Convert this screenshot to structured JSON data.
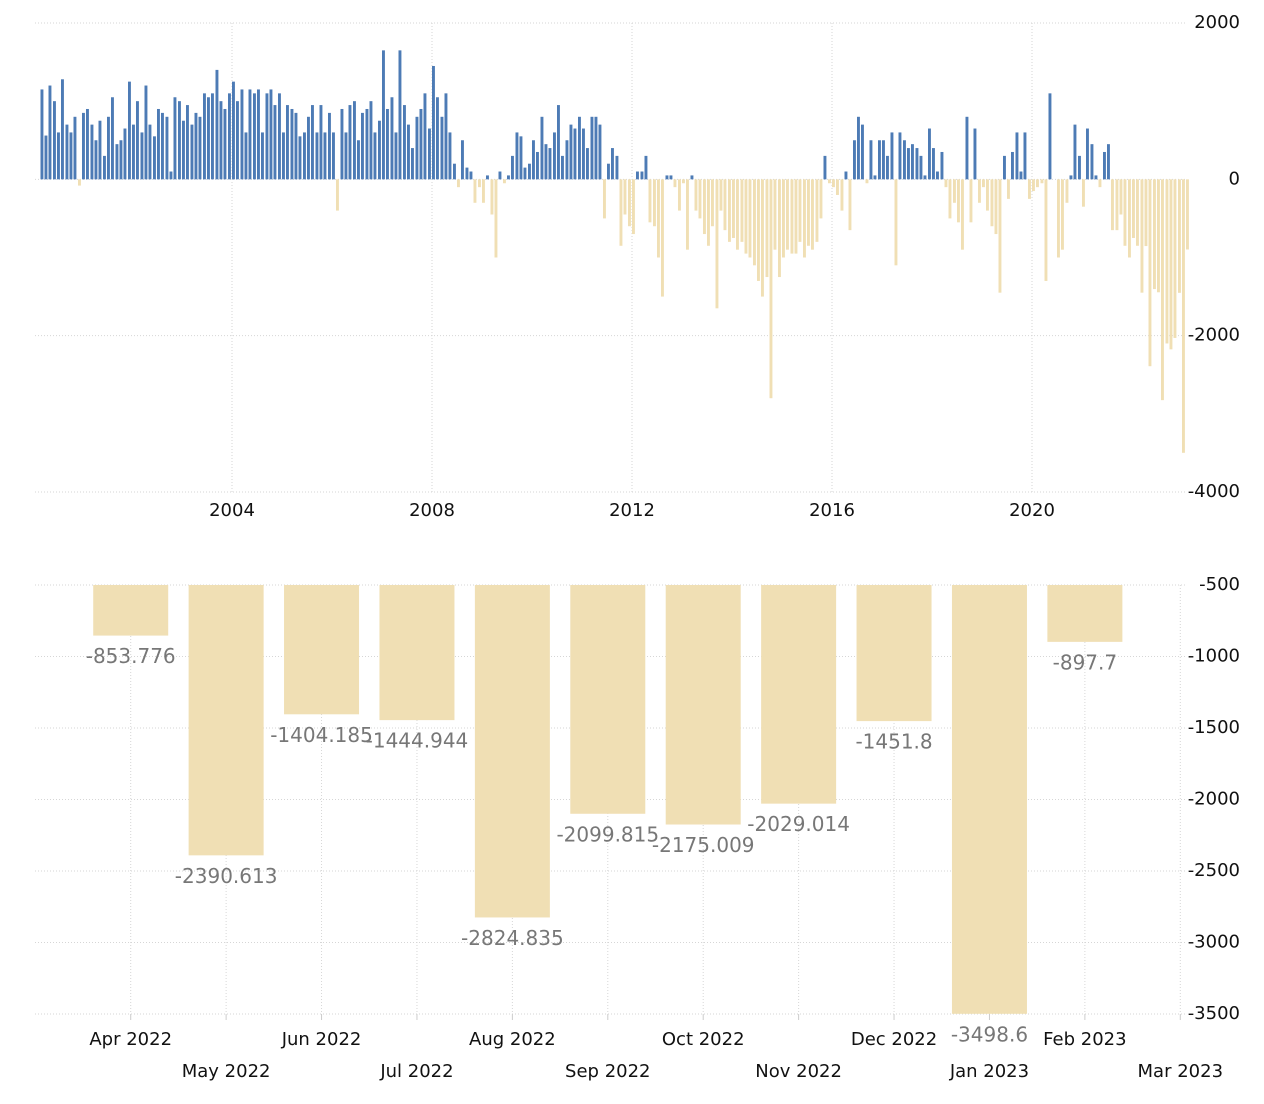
{
  "chart_data": [
    {
      "type": "bar",
      "x": [
        2000.17,
        2000.25,
        2000.33,
        2000.42,
        2000.5,
        2000.58,
        2000.67,
        2000.75,
        2000.83,
        2000.92,
        2001,
        2001.08,
        2001.17,
        2001.25,
        2001.33,
        2001.42,
        2001.5,
        2001.58,
        2001.67,
        2001.75,
        2001.83,
        2001.92,
        2002,
        2002.08,
        2002.17,
        2002.25,
        2002.33,
        2002.42,
        2002.5,
        2002.58,
        2002.67,
        2002.75,
        2002.83,
        2002.92,
        2003,
        2003.08,
        2003.17,
        2003.25,
        2003.33,
        2003.42,
        2003.5,
        2003.58,
        2003.67,
        2003.75,
        2003.83,
        2003.92,
        2004,
        2004.08,
        2004.17,
        2004.25,
        2004.33,
        2004.42,
        2004.5,
        2004.58,
        2004.67,
        2004.75,
        2004.83,
        2004.92,
        2005,
        2005.08,
        2005.17,
        2005.25,
        2005.33,
        2005.42,
        2005.5,
        2005.58,
        2005.67,
        2005.75,
        2005.83,
        2005.92,
        2006,
        2006.08,
        2006.17,
        2006.25,
        2006.33,
        2006.42,
        2006.5,
        2006.58,
        2006.67,
        2006.75,
        2006.83,
        2006.92,
        2007,
        2007.08,
        2007.17,
        2007.25,
        2007.33,
        2007.42,
        2007.5,
        2007.58,
        2007.67,
        2007.75,
        2007.83,
        2007.92,
        2008,
        2008.08,
        2008.17,
        2008.25,
        2008.33,
        2008.42,
        2008.5,
        2008.58,
        2008.67,
        2008.75,
        2008.83,
        2008.92,
        2009,
        2009.08,
        2009.17,
        2009.25,
        2009.33,
        2009.42,
        2009.5,
        2009.58,
        2009.67,
        2009.75,
        2009.83,
        2009.92,
        2010,
        2010.08,
        2010.17,
        2010.25,
        2010.33,
        2010.42,
        2010.5,
        2010.58,
        2010.67,
        2010.75,
        2010.83,
        2010.92,
        2011,
        2011.08,
        2011.17,
        2011.25,
        2011.33,
        2011.42,
        2011.5,
        2011.58,
        2011.67,
        2011.75,
        2011.83,
        2011.92,
        2012,
        2012.08,
        2012.17,
        2012.25,
        2012.33,
        2012.42,
        2012.5,
        2012.58,
        2012.67,
        2012.75,
        2012.83,
        2012.92,
        2013,
        2013.08,
        2013.17,
        2013.25,
        2013.33,
        2013.42,
        2013.5,
        2013.58,
        2013.67,
        2013.75,
        2013.83,
        2013.92,
        2014,
        2014.08,
        2014.17,
        2014.25,
        2014.33,
        2014.42,
        2014.5,
        2014.58,
        2014.67,
        2014.75,
        2014.83,
        2014.92,
        2015,
        2015.08,
        2015.17,
        2015.25,
        2015.33,
        2015.42,
        2015.5,
        2015.58,
        2015.67,
        2015.75,
        2015.83,
        2015.92,
        2016,
        2016.08,
        2016.17,
        2016.25,
        2016.33,
        2016.42,
        2016.5,
        2016.58,
        2016.67,
        2016.75,
        2016.83,
        2016.92,
        2017,
        2017.08,
        2017.17,
        2017.25,
        2017.33,
        2017.42,
        2017.5,
        2017.58,
        2017.67,
        2017.75,
        2017.83,
        2017.92,
        2018,
        2018.08,
        2018.17,
        2018.25,
        2018.33,
        2018.42,
        2018.5,
        2018.58,
        2018.67,
        2018.75,
        2018.83,
        2018.92,
        2019,
        2019.08,
        2019.17,
        2019.25,
        2019.33,
        2019.42,
        2019.5,
        2019.58,
        2019.67,
        2019.75,
        2019.83,
        2019.92,
        2020,
        2020.08,
        2020.17,
        2020.25,
        2020.33,
        2020.42,
        2020.5,
        2020.58,
        2020.67,
        2020.75,
        2020.83,
        2020.92,
        2021,
        2021.08,
        2021.17,
        2021.25,
        2021.33,
        2021.42,
        2021.5,
        2021.58,
        2021.67,
        2021.75,
        2021.83,
        2021.92,
        2022,
        2022.08,
        2022.17,
        2022.25,
        2022.33,
        2022.42,
        2022.5,
        2022.58,
        2022.67,
        2022.75,
        2022.83,
        2022.92,
        2023,
        2023.08
      ],
      "values": [
        1150,
        560,
        1200,
        1000,
        600,
        1280,
        700,
        600,
        800,
        -80,
        850,
        900,
        700,
        500,
        750,
        300,
        800,
        1050,
        450,
        500,
        650,
        1250,
        700,
        1000,
        600,
        1200,
        700,
        550,
        900,
        850,
        800,
        100,
        1050,
        1000,
        750,
        950,
        700,
        850,
        800,
        1100,
        1050,
        1100,
        1400,
        1000,
        900,
        1100,
        1250,
        1000,
        1150,
        600,
        1150,
        1100,
        1150,
        600,
        1100,
        1150,
        950,
        1100,
        600,
        950,
        900,
        850,
        550,
        600,
        800,
        950,
        600,
        950,
        600,
        850,
        600,
        -400,
        900,
        600,
        950,
        1000,
        500,
        850,
        900,
        1000,
        600,
        750,
        1650,
        900,
        1050,
        600,
        1650,
        950,
        700,
        400,
        800,
        900,
        1100,
        650,
        1450,
        1050,
        800,
        1100,
        600,
        200,
        -100,
        500,
        150,
        100,
        -300,
        -100,
        -300,
        50,
        -450,
        -1000,
        100,
        -50,
        50,
        300,
        600,
        550,
        150,
        200,
        500,
        350,
        800,
        450,
        400,
        600,
        950,
        300,
        500,
        700,
        650,
        800,
        650,
        400,
        800,
        800,
        700,
        -500,
        200,
        400,
        300,
        -850,
        -450,
        -600,
        -700,
        100,
        100,
        300,
        -550,
        -600,
        -1000,
        -1500,
        50,
        50,
        -100,
        -400,
        -50,
        -900,
        50,
        -400,
        -500,
        -700,
        -850,
        -600,
        -1650,
        -400,
        -650,
        -800,
        -750,
        -900,
        -800,
        -950,
        -1000,
        -1100,
        -1300,
        -1500,
        -1250,
        -2800,
        -900,
        -1250,
        -1000,
        -900,
        -950,
        -950,
        -800,
        -1000,
        -850,
        -900,
        -800,
        -500,
        300,
        -50,
        -100,
        -200,
        -400,
        100,
        -650,
        500,
        800,
        700,
        -50,
        500,
        50,
        500,
        500,
        300,
        600,
        -1100,
        600,
        500,
        400,
        450,
        400,
        300,
        50,
        650,
        400,
        100,
        350,
        -100,
        -500,
        -300,
        -550,
        -900,
        800,
        -550,
        650,
        -300,
        -100,
        -400,
        -600,
        -700,
        -1450,
        300,
        -250,
        350,
        600,
        100,
        600,
        -250,
        -150,
        -100,
        -50,
        -1300,
        1100,
        0,
        -1000,
        -900,
        -300,
        50,
        700,
        300,
        -350,
        650,
        450,
        50,
        -100,
        350,
        450,
        -650,
        -650,
        -450,
        -850,
        -1000,
        -750,
        -850,
        -1450,
        -853.776,
        -2390.613,
        -1404.185,
        -1444.944,
        -2824.835,
        -2099.815,
        -2175.009,
        -2029.014,
        -1451.8,
        -3498.6,
        -897.7
      ],
      "pos_color": "#4d7bb5",
      "neg_color": "#f0dfb4",
      "xlim": [
        2000,
        2023.1
      ],
      "xticks": [
        2004,
        2008,
        2012,
        2016,
        2020
      ],
      "ylim": [
        -4000,
        2000
      ],
      "yticks": [
        2000,
        0,
        -2000,
        -4000
      ],
      "grid": true
    },
    {
      "type": "bar",
      "categories": [
        "Apr 2022",
        "May 2022",
        "Jun 2022",
        "Jul 2022",
        "Aug 2022",
        "Sep 2022",
        "Oct 2022",
        "Nov 2022",
        "Dec 2022",
        "Jan 2023",
        "Feb 2023",
        "Mar 2023"
      ],
      "values": [
        -853.776,
        -2390.613,
        -1404.185,
        -1444.944,
        -2824.835,
        -2099.815,
        -2175.009,
        -2029.014,
        -1451.8,
        -3498.6,
        -897.7,
        null
      ],
      "color": "#f0dfb4",
      "ylim": [
        -3500,
        -500
      ],
      "yticks": [
        -500,
        -1000,
        -1500,
        -2000,
        -2500,
        -3000,
        -3500
      ],
      "grid": true
    }
  ]
}
